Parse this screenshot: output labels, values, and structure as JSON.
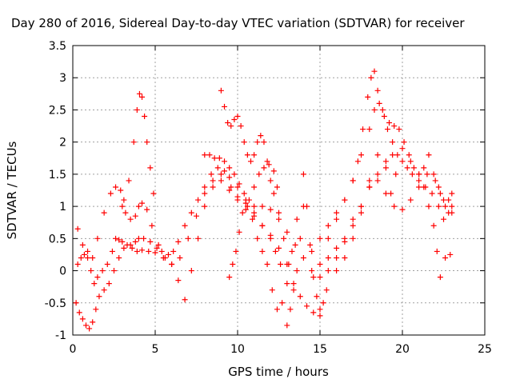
{
  "chart_data": {
    "type": "scatter",
    "title": "Day 280 of 2016, Sidereal Day-to-day VTEC variation (SDTVAR) for receiver",
    "xlabel": "GPS time / hours",
    "ylabel": "SDTVAR / TECUs",
    "xlim": [
      0,
      25
    ],
    "ylim": [
      -1,
      3.5
    ],
    "xticks": [
      "0",
      "5",
      "10",
      "15",
      "20",
      "25"
    ],
    "yticks": [
      "-1",
      "-0.5",
      "0",
      "0.5",
      "1",
      "1.5",
      "2",
      "2.5",
      "3",
      "3.5"
    ],
    "grid": true,
    "marker": "+",
    "color": "#ff0000",
    "series": [
      {
        "x": [
          0.3,
          0.5,
          0.7,
          0.9,
          1.1,
          1.3,
          1.5,
          1.8,
          2.1,
          2.4,
          2.6,
          2.8,
          3.0,
          3.3,
          3.6,
          3.9,
          4.2,
          4.6,
          5.0,
          5.4,
          5.8,
          6.1,
          6.4,
          6.8,
          7.2,
          7.6,
          8.0,
          8.4,
          8.8,
          9.2,
          9.6,
          10.0,
          10.5,
          11.0,
          11.5,
          12.0,
          12.5,
          13.0,
          13.5,
          14.0,
          14.5,
          15.0,
          15.5,
          16.0,
          16.5,
          17.0,
          17.5,
          18.0,
          18.5,
          19.0,
          19.4
        ],
        "y": [
          0.1,
          0.2,
          0.25,
          0.2,
          0.0,
          -0.2,
          -0.1,
          0.0,
          0.1,
          0.3,
          0.5,
          0.48,
          0.45,
          0.4,
          0.35,
          0.3,
          0.32,
          0.3,
          0.28,
          0.3,
          0.25,
          0.3,
          0.45,
          0.7,
          0.9,
          1.1,
          1.3,
          1.5,
          1.6,
          1.55,
          1.3,
          1.15,
          1.05,
          1.0,
          1.0,
          0.95,
          0.8,
          0.6,
          0.4,
          0.2,
          0.0,
          -0.1,
          0.0,
          0.2,
          0.45,
          0.8,
          1.0,
          1.3,
          1.5,
          1.7,
          1.8
        ]
      },
      {
        "x": [
          0.2,
          0.4,
          0.6,
          0.8,
          1.0,
          1.2,
          1.4,
          1.6,
          1.9,
          2.2,
          2.5,
          2.8,
          3.1,
          3.5,
          3.8,
          4.0,
          4.3,
          4.7,
          5.1,
          5.5,
          6.0,
          6.5,
          7.0,
          7.5,
          8.0,
          8.5,
          9.0,
          9.5,
          10.0,
          10.5,
          11.0,
          11.5,
          12.0,
          12.3,
          12.6
        ],
        "y": [
          -0.5,
          -0.65,
          -0.75,
          -0.85,
          -0.9,
          -0.8,
          -0.6,
          -0.4,
          -0.3,
          -0.2,
          0.0,
          0.2,
          0.35,
          0.4,
          0.45,
          0.5,
          0.5,
          0.45,
          0.35,
          0.2,
          0.1,
          0.2,
          0.5,
          0.85,
          1.2,
          1.4,
          1.5,
          1.45,
          1.3,
          1.1,
          0.9,
          0.7,
          0.5,
          0.3,
          0.1
        ]
      },
      {
        "x": [
          0.3,
          0.6,
          0.9,
          1.2,
          1.5,
          1.9,
          2.3,
          2.6,
          2.9,
          3.1,
          3.4,
          3.7,
          3.9,
          4.05,
          4.2,
          4.35,
          4.5,
          4.7,
          4.9
        ],
        "y": [
          0.65,
          0.4,
          0.3,
          0.2,
          0.5,
          0.9,
          1.2,
          1.3,
          1.25,
          1.1,
          1.4,
          2.0,
          2.5,
          2.75,
          2.7,
          2.4,
          2.0,
          1.6,
          1.2
        ]
      },
      {
        "x": [
          3.0,
          3.2,
          3.5,
          3.8,
          4.0,
          4.2,
          4.5,
          4.8,
          5.2,
          5.6,
          6.0,
          6.4,
          6.8,
          7.2,
          7.6,
          8.0,
          8.5,
          9.0,
          9.5,
          10.0,
          10.5,
          11.0,
          11.5,
          12.0,
          12.5,
          13.0
        ],
        "y": [
          1.0,
          0.9,
          0.8,
          0.85,
          1.0,
          1.05,
          0.95,
          0.7,
          0.4,
          0.2,
          0.1,
          -0.15,
          -0.45,
          0.0,
          0.5,
          1.0,
          1.3,
          1.4,
          1.25,
          1.1,
          0.95,
          0.85,
          0.7,
          0.55,
          0.35,
          0.1
        ]
      },
      {
        "x": [
          9.0,
          9.2,
          9.4,
          9.6,
          9.8,
          10.0,
          10.2,
          10.4,
          10.6,
          10.8,
          11.0,
          11.2,
          11.4,
          11.6,
          11.8,
          12.0,
          12.2,
          12.5,
          12.8,
          13.1,
          13.4,
          13.8,
          14.2,
          14.6,
          15.0
        ],
        "y": [
          2.8,
          2.55,
          2.3,
          2.25,
          2.35,
          2.4,
          2.25,
          2.0,
          1.8,
          1.7,
          1.8,
          2.0,
          2.1,
          2.0,
          1.7,
          1.4,
          1.2,
          0.9,
          0.5,
          0.1,
          -0.2,
          -0.4,
          -0.55,
          -0.65,
          -0.7
        ]
      },
      {
        "x": [
          8.0,
          8.3,
          8.6,
          8.9,
          9.2,
          9.5,
          9.8,
          10.1,
          10.4,
          10.7,
          11.0,
          11.3,
          11.6,
          11.9,
          12.2,
          12.4
        ],
        "y": [
          1.8,
          1.8,
          1.75,
          1.75,
          1.7,
          1.6,
          1.5,
          1.35,
          1.2,
          1.1,
          1.3,
          1.5,
          1.6,
          1.65,
          1.55,
          1.3
        ]
      },
      {
        "x": [
          9.5,
          9.7,
          9.9,
          10.1,
          10.3,
          10.6,
          10.9,
          11.2,
          11.5,
          11.8,
          12.1,
          12.4,
          12.7,
          13.0,
          13.3,
          13.6,
          14.0
        ],
        "y": [
          -0.1,
          0.1,
          0.3,
          0.6,
          0.9,
          1.0,
          0.8,
          0.5,
          0.3,
          0.1,
          -0.3,
          -0.6,
          -0.5,
          -0.2,
          0.3,
          0.8,
          1.0
        ]
      },
      {
        "x": [
          13.0,
          13.2,
          13.4,
          13.6,
          13.8,
          14.0,
          14.2,
          14.4,
          14.6,
          14.8,
          15.0,
          15.2,
          15.4
        ],
        "y": [
          -0.85,
          -0.6,
          -0.3,
          0.0,
          0.5,
          1.5,
          1.0,
          0.4,
          -0.1,
          -0.4,
          -0.6,
          -0.5,
          -0.3
        ]
      },
      {
        "x": [
          14.5,
          15.0,
          15.5,
          16.0,
          16.5,
          17.0,
          17.5,
          18.0,
          18.3,
          18.6,
          18.9,
          19.2,
          19.5,
          19.8,
          20.1,
          20.4,
          20.7,
          21.0,
          21.3,
          21.6,
          21.9,
          22.2,
          22.5,
          22.8,
          23.0
        ],
        "y": [
          0.3,
          0.5,
          0.7,
          0.9,
          1.1,
          1.4,
          1.8,
          2.2,
          2.5,
          2.6,
          2.4,
          2.3,
          2.25,
          2.2,
          2.0,
          1.8,
          1.6,
          1.5,
          1.6,
          1.8,
          1.5,
          1.3,
          1.1,
          1.1,
          1.2
        ]
      },
      {
        "x": [
          15.5,
          16.0,
          16.5,
          17.0,
          17.3,
          17.6,
          17.9,
          18.1,
          18.3,
          18.5,
          18.8,
          19.1,
          19.4,
          19.7,
          20.0,
          20.3,
          20.6,
          21.0,
          21.4,
          21.8,
          22.2,
          22.5,
          22.8,
          23.0
        ],
        "y": [
          0.5,
          0.8,
          1.1,
          1.4,
          1.7,
          2.2,
          2.7,
          3.0,
          3.1,
          2.8,
          2.5,
          2.2,
          2.0,
          1.8,
          1.7,
          1.6,
          1.5,
          1.4,
          1.3,
          1.2,
          1.0,
          0.8,
          0.9,
          1.0
        ]
      },
      {
        "x": [
          15.0,
          15.5,
          16.0,
          16.5,
          17.0,
          17.5,
          18.0,
          18.5,
          19.0,
          19.5,
          20.0,
          20.5,
          21.0,
          21.5,
          22.0,
          22.3,
          22.6,
          23.0
        ],
        "y": [
          0.1,
          0.2,
          0.35,
          0.5,
          0.7,
          1.0,
          1.3,
          1.4,
          1.2,
          1.0,
          0.95,
          1.1,
          1.3,
          1.5,
          1.4,
          1.2,
          1.0,
          0.9
        ]
      },
      {
        "x": [
          16.0,
          16.5,
          17.0,
          17.5,
          18.0,
          18.5,
          19.0,
          19.3,
          19.6,
          20.0,
          20.5,
          21.0,
          21.3,
          21.6,
          21.9,
          22.1,
          22.3,
          22.6,
          22.9
        ],
        "y": [
          0.0,
          0.2,
          0.5,
          0.9,
          1.4,
          1.8,
          1.6,
          1.2,
          1.5,
          1.9,
          1.7,
          1.5,
          1.3,
          1.0,
          0.7,
          0.3,
          -0.1,
          0.2,
          0.25
        ]
      }
    ]
  }
}
